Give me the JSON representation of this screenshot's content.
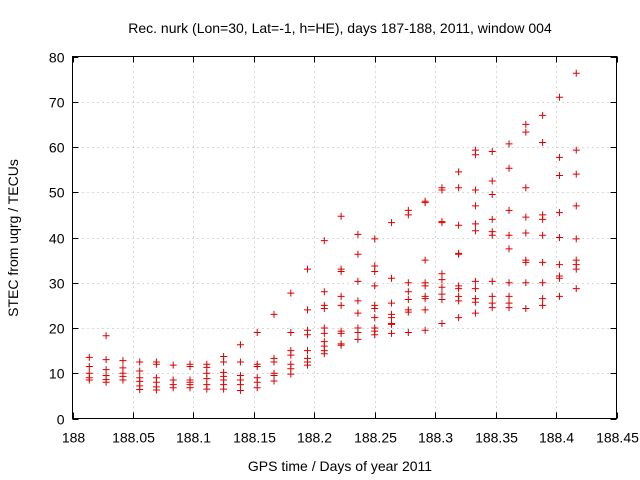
{
  "chart_data": {
    "type": "scatter",
    "title": "Rec. nurk (Lon=30, Lat=-1, h=HE), days 187-188, 2011, window 004",
    "xlabel": "GPS time / Days of year 2011",
    "ylabel": "STEC from uqrg / TECUs",
    "xlim": [
      188,
      188.45
    ],
    "ylim": [
      0,
      80
    ],
    "xticks": [
      188,
      188.05,
      188.1,
      188.15,
      188.2,
      188.25,
      188.3,
      188.35,
      188.4,
      188.45
    ],
    "xtick_labels": [
      "188",
      "188.05",
      "188.1",
      "188.15",
      "188.2",
      "188.25",
      "188.3",
      "188.35",
      "188.4",
      "188.45"
    ],
    "yticks": [
      0,
      10,
      20,
      30,
      40,
      50,
      60,
      70,
      80
    ],
    "ytick_labels": [
      "0",
      "10",
      "20",
      "30",
      "40",
      "50",
      "60",
      "70",
      "80"
    ],
    "grid": true,
    "marker": "+",
    "color": "#dd0000",
    "series": [
      {
        "name": "STEC",
        "points": [
          [
            188.0139,
            13.5
          ],
          [
            188.0139,
            11.5
          ],
          [
            188.0139,
            10.0
          ],
          [
            188.0139,
            9.0
          ],
          [
            188.0139,
            8.5
          ],
          [
            188.0278,
            18.3
          ],
          [
            188.0278,
            13.0
          ],
          [
            188.0278,
            10.8
          ],
          [
            188.0278,
            9.5
          ],
          [
            188.0278,
            8.6
          ],
          [
            188.0278,
            8.0
          ],
          [
            188.0417,
            12.8
          ],
          [
            188.0417,
            11.2
          ],
          [
            188.0417,
            10.0
          ],
          [
            188.0417,
            9.3
          ],
          [
            188.0417,
            8.5
          ],
          [
            188.0556,
            12.5
          ],
          [
            188.0556,
            10.5
          ],
          [
            188.0556,
            9.0
          ],
          [
            188.0556,
            8.2
          ],
          [
            188.0556,
            7.2
          ],
          [
            188.0556,
            6.4
          ],
          [
            188.0694,
            12.5
          ],
          [
            188.0694,
            12.0
          ],
          [
            188.0694,
            9.0
          ],
          [
            188.0694,
            8.0
          ],
          [
            188.0694,
            7.0
          ],
          [
            188.0694,
            6.3
          ],
          [
            188.0833,
            11.8
          ],
          [
            188.0833,
            8.5
          ],
          [
            188.0833,
            7.5
          ],
          [
            188.0833,
            6.8
          ],
          [
            188.0972,
            12.0
          ],
          [
            188.0972,
            11.5
          ],
          [
            188.0972,
            8.5
          ],
          [
            188.0972,
            8.0
          ],
          [
            188.0972,
            7.5
          ],
          [
            188.0972,
            6.8
          ],
          [
            188.1111,
            12.0
          ],
          [
            188.1111,
            11.3
          ],
          [
            188.1111,
            10.0
          ],
          [
            188.1111,
            8.8
          ],
          [
            188.1111,
            7.5
          ],
          [
            188.1111,
            6.5
          ],
          [
            188.125,
            13.7
          ],
          [
            188.125,
            12.5
          ],
          [
            188.125,
            10.2
          ],
          [
            188.125,
            9.3
          ],
          [
            188.125,
            8.5
          ],
          [
            188.125,
            7.5
          ],
          [
            188.125,
            6.5
          ],
          [
            188.1389,
            16.3
          ],
          [
            188.1389,
            12.5
          ],
          [
            188.1389,
            9.5
          ],
          [
            188.1389,
            8.5
          ],
          [
            188.1389,
            7.5
          ],
          [
            188.1389,
            6.2
          ],
          [
            188.1528,
            19.0
          ],
          [
            188.1528,
            12.0
          ],
          [
            188.1528,
            11.5
          ],
          [
            188.1528,
            9.0
          ],
          [
            188.1528,
            8.0
          ],
          [
            188.1528,
            6.8
          ],
          [
            188.1667,
            23.0
          ],
          [
            188.1667,
            13.3
          ],
          [
            188.1667,
            12.5
          ],
          [
            188.1667,
            10.0
          ],
          [
            188.1667,
            9.5
          ],
          [
            188.1667,
            8.3
          ],
          [
            188.1806,
            27.7
          ],
          [
            188.1806,
            19.0
          ],
          [
            188.1806,
            15.0
          ],
          [
            188.1806,
            14.0
          ],
          [
            188.1806,
            12.0
          ],
          [
            188.1806,
            11.0
          ],
          [
            188.1806,
            9.8
          ],
          [
            188.1944,
            33.0
          ],
          [
            188.1944,
            24.0
          ],
          [
            188.1944,
            19.5
          ],
          [
            188.1944,
            18.5
          ],
          [
            188.1944,
            15.0
          ],
          [
            188.1944,
            13.3
          ],
          [
            188.1944,
            12.5
          ],
          [
            188.1944,
            11.8
          ],
          [
            188.2083,
            39.3
          ],
          [
            188.2083,
            28.0
          ],
          [
            188.2083,
            25.0
          ],
          [
            188.2083,
            24.3
          ],
          [
            188.2083,
            20.0
          ],
          [
            188.2083,
            18.8
          ],
          [
            188.2083,
            17.0
          ],
          [
            188.2083,
            16.0
          ],
          [
            188.2083,
            15.0
          ],
          [
            188.2083,
            14.3
          ],
          [
            188.2222,
            44.7
          ],
          [
            188.2222,
            33.0
          ],
          [
            188.2222,
            32.5
          ],
          [
            188.2222,
            27.0
          ],
          [
            188.2222,
            25.0
          ],
          [
            188.2222,
            19.3
          ],
          [
            188.2222,
            18.8
          ],
          [
            188.2222,
            16.5
          ],
          [
            188.2222,
            16.2
          ],
          [
            188.2361,
            40.7
          ],
          [
            188.2361,
            36.3
          ],
          [
            188.2361,
            30.3
          ],
          [
            188.2361,
            26.0
          ],
          [
            188.2361,
            23.3
          ],
          [
            188.2361,
            20.0
          ],
          [
            188.2361,
            19.0
          ],
          [
            188.2361,
            17.5
          ],
          [
            188.25,
            39.7
          ],
          [
            188.25,
            33.7
          ],
          [
            188.25,
            32.5
          ],
          [
            188.25,
            29.3
          ],
          [
            188.25,
            25.0
          ],
          [
            188.25,
            24.3
          ],
          [
            188.25,
            22.3
          ],
          [
            188.25,
            20.0
          ],
          [
            188.25,
            19.3
          ],
          [
            188.25,
            18.5
          ],
          [
            188.2639,
            43.3
          ],
          [
            188.2639,
            31.0
          ],
          [
            188.2639,
            25.5
          ],
          [
            188.2639,
            23.0
          ],
          [
            188.2639,
            22.3
          ],
          [
            188.2639,
            21.0
          ],
          [
            188.2639,
            20.8
          ],
          [
            188.2639,
            18.8
          ],
          [
            188.2778,
            46.0
          ],
          [
            188.2778,
            45.0
          ],
          [
            188.2778,
            30.0
          ],
          [
            188.2778,
            28.0
          ],
          [
            188.2778,
            26.3
          ],
          [
            188.2778,
            24.0
          ],
          [
            188.2778,
            23.5
          ],
          [
            188.2778,
            19.0
          ],
          [
            188.2917,
            48.0
          ],
          [
            188.2917,
            47.7
          ],
          [
            188.2917,
            35.0
          ],
          [
            188.2917,
            30.0
          ],
          [
            188.2917,
            29.3
          ],
          [
            188.2917,
            27.0
          ],
          [
            188.2917,
            26.5
          ],
          [
            188.2917,
            24.0
          ],
          [
            188.2917,
            19.5
          ],
          [
            188.3056,
            51.0
          ],
          [
            188.3056,
            50.5
          ],
          [
            188.3056,
            43.5
          ],
          [
            188.3056,
            43.3
          ],
          [
            188.3056,
            32.0
          ],
          [
            188.3056,
            30.7
          ],
          [
            188.3056,
            29.0
          ],
          [
            188.3056,
            27.5
          ],
          [
            188.3056,
            26.3
          ],
          [
            188.3056,
            21.0
          ],
          [
            188.3194,
            54.5
          ],
          [
            188.3194,
            51.0
          ],
          [
            188.3194,
            42.7
          ],
          [
            188.3194,
            36.3
          ],
          [
            188.3194,
            36.5
          ],
          [
            188.3194,
            29.3
          ],
          [
            188.3194,
            28.7
          ],
          [
            188.3194,
            27.0
          ],
          [
            188.3194,
            26.0
          ],
          [
            188.3194,
            22.3
          ],
          [
            188.3333,
            59.3
          ],
          [
            188.3333,
            58.3
          ],
          [
            188.3333,
            50.5
          ],
          [
            188.3333,
            47.0
          ],
          [
            188.3333,
            43.0
          ],
          [
            188.3333,
            41.5
          ],
          [
            188.3333,
            30.3
          ],
          [
            188.3333,
            28.7
          ],
          [
            188.3333,
            26.5
          ],
          [
            188.3333,
            25.7
          ],
          [
            188.3333,
            23.3
          ],
          [
            188.3472,
            59.0
          ],
          [
            188.3472,
            52.5
          ],
          [
            188.3472,
            49.5
          ],
          [
            188.3472,
            44.0
          ],
          [
            188.3472,
            41.3
          ],
          [
            188.3472,
            40.5
          ],
          [
            188.3472,
            30.3
          ],
          [
            188.3472,
            27.0
          ],
          [
            188.3472,
            25.5
          ],
          [
            188.3472,
            24.5
          ],
          [
            188.3611,
            60.7
          ],
          [
            188.3611,
            55.3
          ],
          [
            188.3611,
            46.0
          ],
          [
            188.3611,
            40.5
          ],
          [
            188.3611,
            37.5
          ],
          [
            188.3611,
            30.0
          ],
          [
            188.3611,
            27.0
          ],
          [
            188.3611,
            25.5
          ],
          [
            188.3611,
            24.5
          ],
          [
            188.375,
            65.0
          ],
          [
            188.375,
            63.3
          ],
          [
            188.375,
            51.0
          ],
          [
            188.375,
            44.5
          ],
          [
            188.375,
            41.0
          ],
          [
            188.375,
            35.0
          ],
          [
            188.375,
            34.5
          ],
          [
            188.375,
            30.0
          ],
          [
            188.375,
            24.3
          ],
          [
            188.3889,
            67.0
          ],
          [
            188.3889,
            61.0
          ],
          [
            188.3889,
            45.0
          ],
          [
            188.3889,
            44.0
          ],
          [
            188.3889,
            40.5
          ],
          [
            188.3889,
            34.5
          ],
          [
            188.3889,
            30.0
          ],
          [
            188.3889,
            26.5
          ],
          [
            188.3889,
            25.0
          ],
          [
            188.4028,
            71.0
          ],
          [
            188.4028,
            57.7
          ],
          [
            188.4028,
            53.7
          ],
          [
            188.4028,
            45.5
          ],
          [
            188.4028,
            40.0
          ],
          [
            188.4028,
            34.0
          ],
          [
            188.4028,
            31.5
          ],
          [
            188.4028,
            31.0
          ],
          [
            188.4028,
            27.0
          ],
          [
            188.4167,
            76.3
          ],
          [
            188.4167,
            59.3
          ],
          [
            188.4167,
            54.0
          ],
          [
            188.4167,
            47.0
          ],
          [
            188.4167,
            39.7
          ],
          [
            188.4167,
            35.0
          ],
          [
            188.4167,
            34.0
          ],
          [
            188.4167,
            33.0
          ],
          [
            188.4167,
            28.7
          ]
        ]
      }
    ]
  }
}
